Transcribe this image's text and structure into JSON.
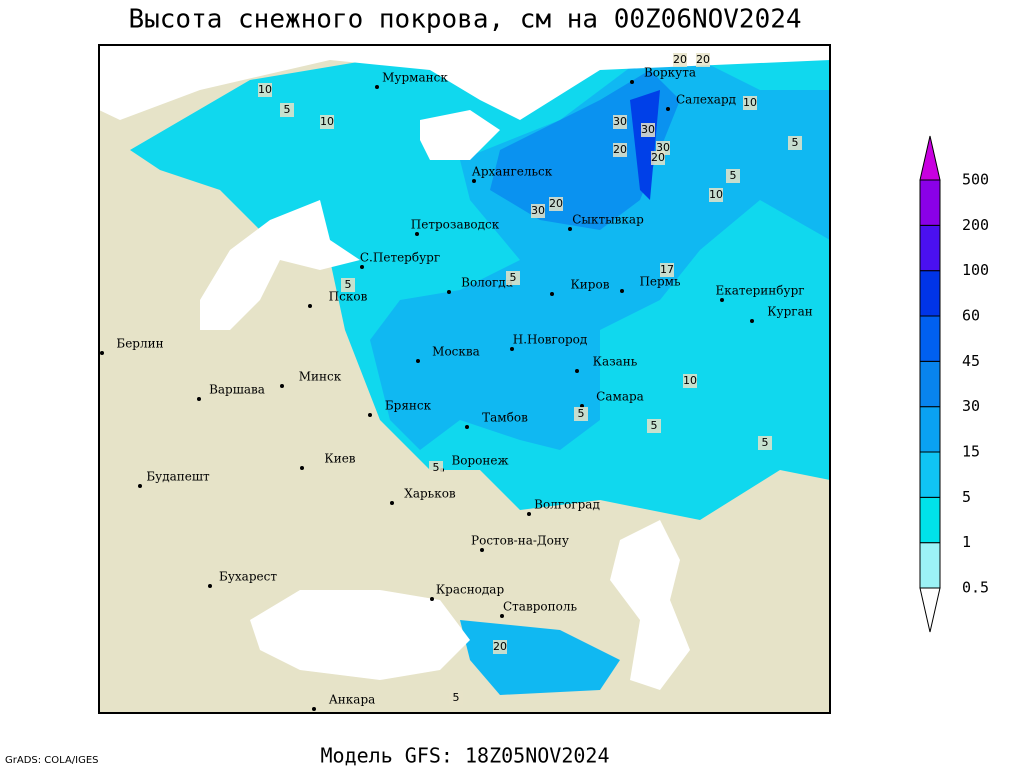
{
  "header": {
    "title": "Высота снежного покрова, см на 00Z06NOV2024"
  },
  "map": {
    "cities": [
      "Мурманск",
      "Воркута",
      "Салехард",
      "Архангельск",
      "Сыктывкар",
      "Петрозаводск",
      "С.Петербург",
      "Вологда",
      "Киров",
      "Пермь",
      "Екатеринбург",
      "Курган",
      "Псков",
      "Берлин",
      "Н.Новгород",
      "Москва",
      "Казань",
      "Минск",
      "Варшава",
      "Самара",
      "Брянск",
      "Тамбов",
      "Киев",
      "Воронеж",
      "Будапешт",
      "Харьков",
      "Волгоград",
      "Ростов-на-Дону",
      "Бухарест",
      "Краснодар",
      "Ставрополь",
      "Анкара"
    ],
    "contour_labels": [
      20,
      20,
      10,
      5,
      10,
      10,
      30,
      30,
      30,
      20,
      20,
      5,
      5,
      10,
      20,
      30,
      5,
      5,
      17,
      10,
      5,
      5,
      5,
      5,
      20,
      5
    ]
  },
  "legend": {
    "levels": [
      0.5,
      1,
      5,
      15,
      30,
      45,
      60,
      100,
      200,
      500
    ],
    "colors": [
      "#ffffff",
      "#9cf2f6",
      "#00e2ea",
      "#10c4f4",
      "#0aa2f2",
      "#0884ee",
      "#0060f0",
      "#0034e8",
      "#4a10f0",
      "#8a00e8",
      "#c800e0"
    ]
  },
  "footer": {
    "model": "Модель GFS: 18Z05NOV2024",
    "credit": "GrADS: COLA/IGES"
  }
}
